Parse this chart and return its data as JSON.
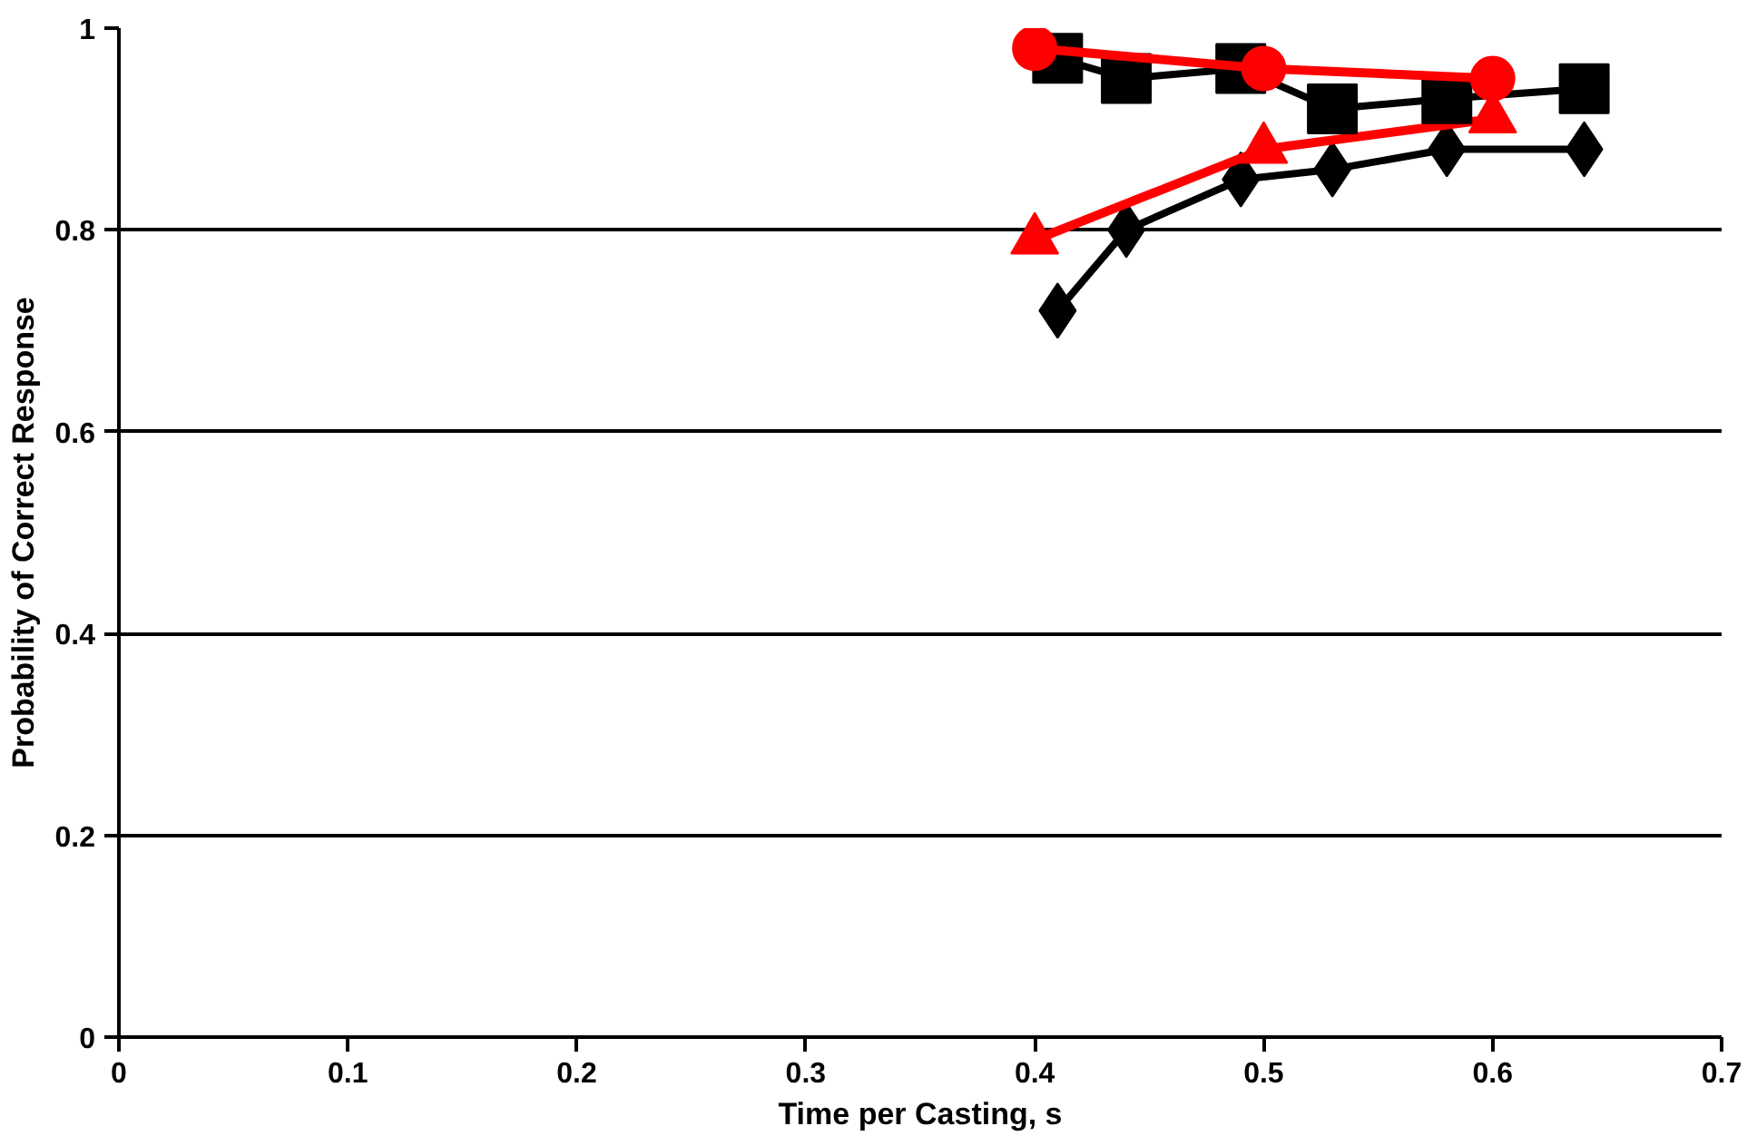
{
  "chart_data": {
    "type": "line",
    "xlabel": "Time per Casting, s",
    "ylabel": "Probability of Correct Response",
    "xlim": [
      0,
      0.7
    ],
    "ylim": [
      0,
      1
    ],
    "xticks": [
      0,
      0.1,
      0.2,
      0.3,
      0.4,
      0.5,
      0.6,
      0.7
    ],
    "yticks": [
      0,
      0.2,
      0.4,
      0.6,
      0.8,
      1
    ],
    "grid": "y",
    "line_style": "solid",
    "series": [
      {
        "color": "#000000",
        "marker": "diamond",
        "x": [
          0.41,
          0.44,
          0.49,
          0.53,
          0.58,
          0.64
        ],
        "values": [
          0.72,
          0.8,
          0.85,
          0.86,
          0.88,
          0.88
        ]
      },
      {
        "color": "#ff0000",
        "marker": "triangle",
        "x": [
          0.4,
          0.5,
          0.6
        ],
        "values": [
          0.79,
          0.88,
          0.91
        ]
      },
      {
        "color": "#000000",
        "marker": "square",
        "x": [
          0.41,
          0.44,
          0.49,
          0.53,
          0.58,
          0.64
        ],
        "values": [
          0.97,
          0.95,
          0.96,
          0.92,
          0.93,
          0.94
        ]
      },
      {
        "color": "#ff0000",
        "marker": "circle",
        "x": [
          0.4,
          0.5,
          0.6
        ],
        "values": [
          0.98,
          0.96,
          0.95
        ]
      }
    ]
  }
}
